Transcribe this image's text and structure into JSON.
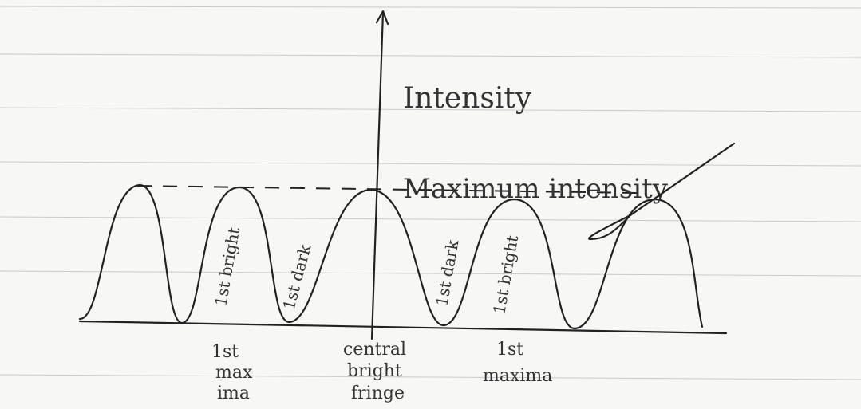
{
  "axis_label": "Intensity",
  "annotation": "Maximum intensity",
  "fringe_labels": [
    "1st bright",
    "1st dark",
    "1st dark",
    "1st bright"
  ],
  "bottom_labels": [
    [
      "1st",
      "max",
      "ima"
    ],
    [
      "central",
      "bright",
      "fringe"
    ],
    [
      "1st",
      "maxima"
    ]
  ]
}
